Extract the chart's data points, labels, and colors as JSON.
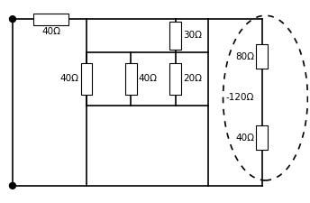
{
  "bg_color": "#ffffff",
  "line_color": "#000000",
  "resistor_fill": "#ffffff",
  "resistor_edge": "#000000",
  "labels": {
    "r_top": "40Ω",
    "r_30": "30Ω",
    "r_40a": "40Ω",
    "r_40b": "40Ω",
    "r_20": "20Ω",
    "r_80": "80Ω",
    "r_120": "-120Ω",
    "r_40c": "40Ω"
  },
  "label_fontsize": 7.5,
  "lw": 1.2
}
